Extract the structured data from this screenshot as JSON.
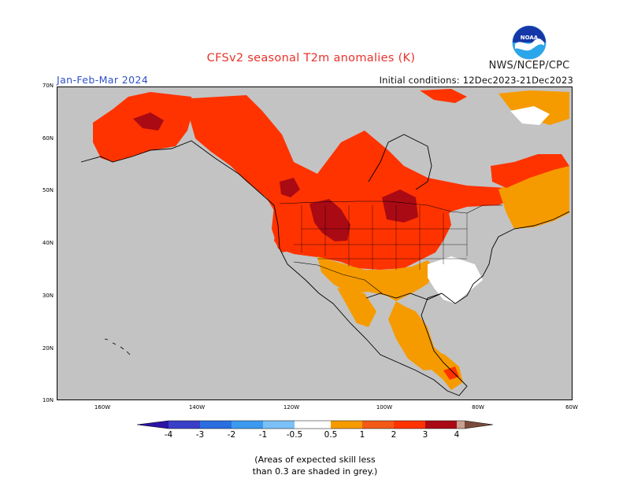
{
  "title": "CFSv2 seasonal T2m anomalies (K)",
  "agency": "NWS/NCEP/CPC",
  "season": "Jan-Feb-Mar 2024",
  "initial_conditions": "Initial conditions: 12Dec2023-21Dec2023",
  "logo_text": "NOAA",
  "lat_labels": [
    "70N",
    "60N",
    "50N",
    "40N",
    "30N",
    "20N",
    "10N"
  ],
  "lon_labels": [
    "160W",
    "140W",
    "120W",
    "100W",
    "80W",
    "60W"
  ],
  "colorbar": {
    "labels": [
      "-4",
      "-3",
      "-2",
      "-1",
      "-0.5",
      "0.5",
      "1",
      "2",
      "3",
      "4"
    ],
    "colors": [
      "#2a14a4",
      "#3a3fc8",
      "#2a6ee0",
      "#3b9af0",
      "#7cc0f8",
      "#ffffff",
      "#f59b00",
      "#f25a16",
      "#ff3300",
      "#aa0a14",
      "#c8a092",
      "#7a4a3a"
    ]
  },
  "note_line1": "(Areas of expected skill less",
  "note_line2": "than 0.3 are shaded in grey.)",
  "map_colors": {
    "skill_grey": "#c3c3c3",
    "neutral": "#ffffff",
    "anom_05_1": "#f59b00",
    "anom_1_2": "#ff3300",
    "anom_2_3": "#aa0a14",
    "anom_3_4": "#c8a092"
  }
}
